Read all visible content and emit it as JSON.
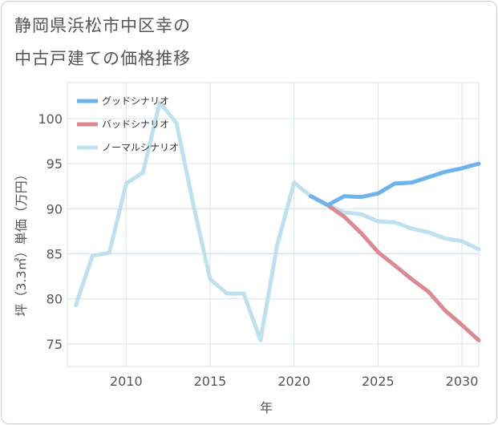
{
  "chart_data": {
    "type": "line",
    "title_lines": [
      "静岡県浜松市中区幸の",
      "中古戸建ての価格推移"
    ],
    "xlabel": "年",
    "ylabel": "坪（3.3㎡）単価（万円）",
    "xlim": [
      2006.5,
      2031
    ],
    "ylim": [
      72.5,
      104
    ],
    "x_ticks": [
      2010,
      2015,
      2020,
      2025,
      2030
    ],
    "y_ticks": [
      75,
      80,
      85,
      90,
      95,
      100
    ],
    "grid": true,
    "legend_position": "top-left",
    "series": [
      {
        "name": "グッドシナリオ",
        "color": "#6db3ee",
        "x": [
          2021,
          2022,
          2023,
          2024,
          2025,
          2026,
          2027,
          2028,
          2029,
          2030,
          2031
        ],
        "values": [
          91.4,
          90.4,
          91.4,
          91.3,
          91.7,
          92.8,
          92.9,
          93.5,
          94.1,
          94.5,
          95.0
        ]
      },
      {
        "name": "バッドシナリオ",
        "color": "#dc8a92",
        "x": [
          2021,
          2022,
          2023,
          2024,
          2025,
          2026,
          2027,
          2028,
          2029,
          2030,
          2031
        ],
        "values": [
          91.4,
          90.4,
          89.1,
          87.3,
          85.2,
          83.7,
          82.2,
          80.8,
          78.7,
          77.1,
          75.4
        ]
      },
      {
        "name": "ノーマルシナリオ",
        "color": "#bfe0ee",
        "x": [
          2007,
          2008,
          2009,
          2010,
          2011,
          2012,
          2013,
          2014,
          2015,
          2016,
          2017,
          2018,
          2019,
          2020,
          2021,
          2022,
          2023,
          2024,
          2025,
          2026,
          2027,
          2028,
          2029,
          2030,
          2031
        ],
        "values": [
          79.3,
          84.8,
          85.1,
          92.8,
          94.0,
          101.8,
          99.5,
          90.5,
          82.2,
          80.6,
          80.6,
          75.4,
          86.0,
          92.9,
          91.4,
          90.4,
          89.6,
          89.4,
          88.6,
          88.5,
          87.8,
          87.4,
          86.7,
          86.4,
          85.5
        ]
      }
    ]
  }
}
